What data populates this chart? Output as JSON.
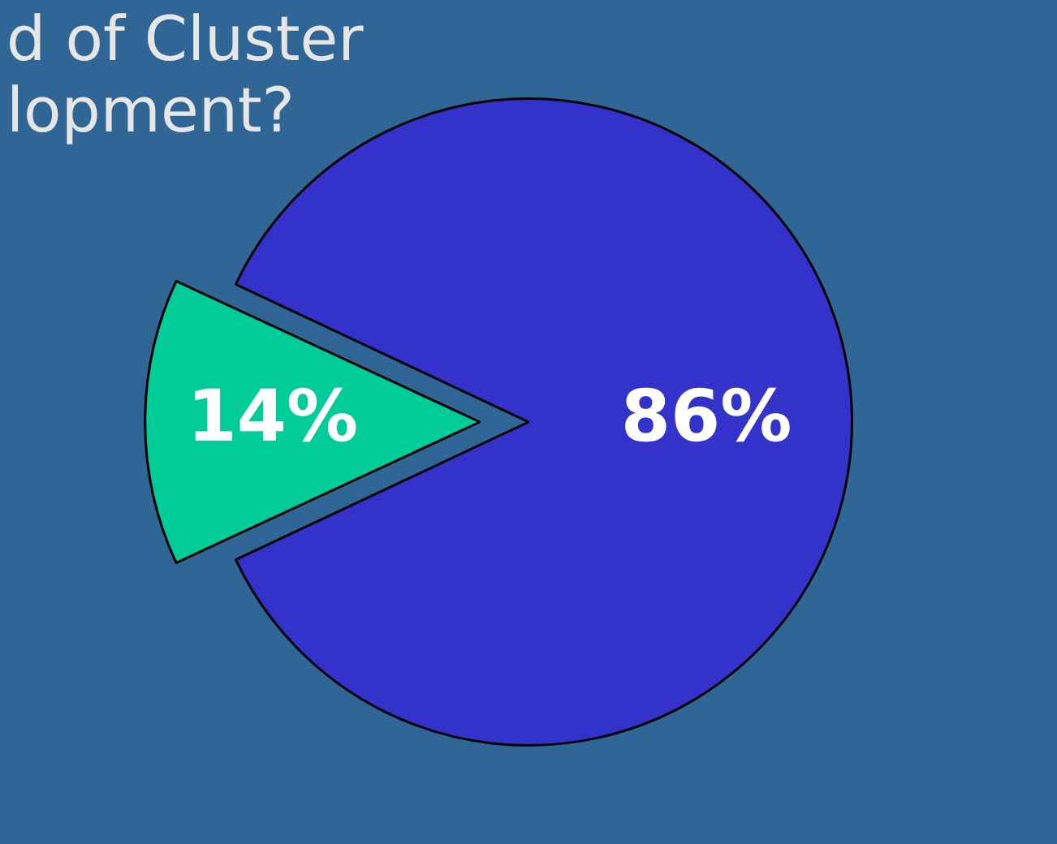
{
  "chart_data": {
    "type": "pie",
    "title": "d of Cluster\nlopment?",
    "categories": [
      null,
      null
    ],
    "values": [
      14,
      86
    ],
    "colors": [
      "#00cc99",
      "#3333cc"
    ],
    "value_labels": [
      "14%",
      "86%"
    ],
    "legend": false
  }
}
